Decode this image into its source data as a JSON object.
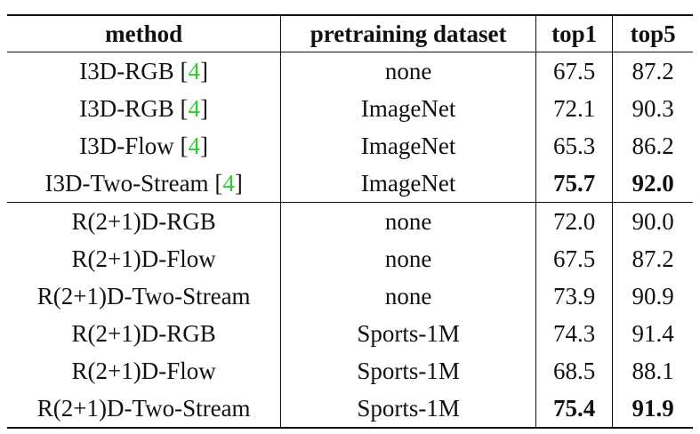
{
  "table": {
    "headers": {
      "method": "method",
      "dataset": "pretraining dataset",
      "top1": "top1",
      "top5": "top5"
    },
    "rows": [
      {
        "method": "I3D-RGB ",
        "ref": "4",
        "dataset": "none",
        "top1": "67.5",
        "top5": "87.2"
      },
      {
        "method": "I3D-RGB ",
        "ref": "4",
        "dataset": "ImageNet",
        "top1": "72.1",
        "top5": "90.3"
      },
      {
        "method": "I3D-Flow ",
        "ref": "4",
        "dataset": "ImageNet",
        "top1": "65.3",
        "top5": "86.2"
      },
      {
        "method": "I3D-Two-Stream ",
        "ref": "4",
        "dataset": "ImageNet",
        "top1": "75.7",
        "top5": "92.0",
        "bold": true
      },
      {
        "method": "R(2+1)D-RGB",
        "dataset": "none",
        "top1": "72.0",
        "top5": "90.0"
      },
      {
        "method": "R(2+1)D-Flow",
        "dataset": "none",
        "top1": "67.5",
        "top5": "87.2"
      },
      {
        "method": "R(2+1)D-Two-Stream",
        "dataset": "none",
        "top1": "73.9",
        "top5": "90.9"
      },
      {
        "method": "R(2+1)D-RGB",
        "dataset": "Sports-1M",
        "top1": "74.3",
        "top5": "91.4"
      },
      {
        "method": "R(2+1)D-Flow",
        "dataset": "Sports-1M",
        "top1": "68.5",
        "top5": "88.1"
      },
      {
        "method": "R(2+1)D-Two-Stream",
        "dataset": "Sports-1M",
        "top1": "75.4",
        "top5": "91.9",
        "bold": true
      }
    ]
  },
  "colors": {
    "ref_link": "#2ecc2e",
    "text": "#111111"
  }
}
